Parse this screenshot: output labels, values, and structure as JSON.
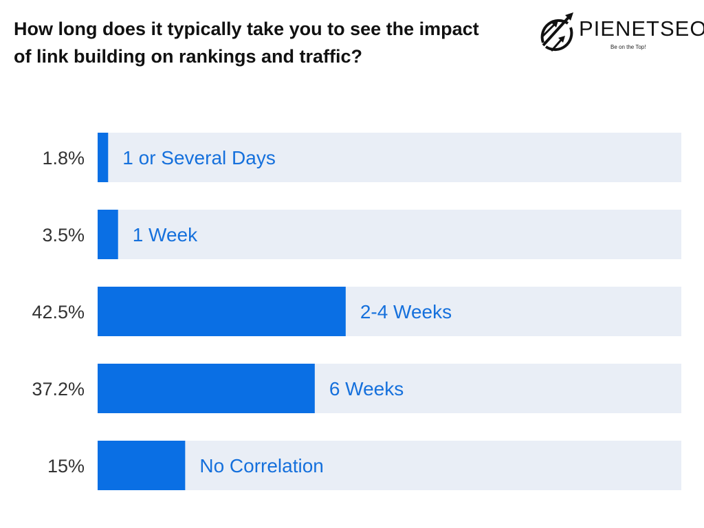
{
  "title": "How long does it typically take you to see the impact of link building on rankings and traffic?",
  "logo": {
    "brand": "PIENETSEO",
    "tagline": "Be on the Top!"
  },
  "colors": {
    "bar": "#0a6fe4",
    "track": "#e9eef6",
    "label": "#1570dc",
    "value": "#333333"
  },
  "chart_data": {
    "type": "bar",
    "orientation": "horizontal",
    "title": "How long does it typically take you to see the impact of link building on rankings and traffic?",
    "categories": [
      "1 or Several Days",
      "1 Week",
      "2-4 Weeks",
      "6 Weeks",
      "No Correlation"
    ],
    "values": [
      1.8,
      3.5,
      42.5,
      37.2,
      15
    ],
    "value_labels": [
      "1.8%",
      "3.5%",
      "42.5%",
      "37.2%",
      "15%"
    ],
    "xlim": [
      0,
      100
    ],
    "grid": false,
    "legend": "none"
  }
}
